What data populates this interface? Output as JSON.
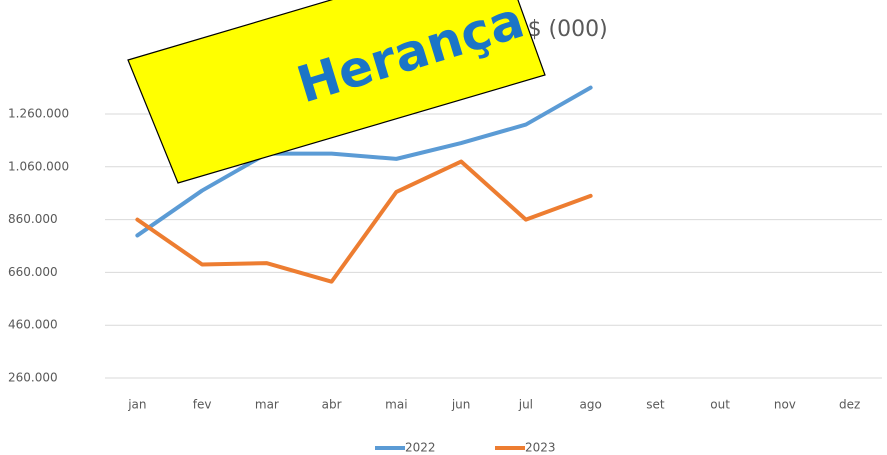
{
  "chart_data": {
    "type": "line",
    "title": "R$ (000)",
    "categories": [
      "jan",
      "fev",
      "mar",
      "abr",
      "mai",
      "jun",
      "jul",
      "ago",
      "set",
      "out",
      "nov",
      "dez"
    ],
    "series": [
      {
        "name": "2022",
        "color": "#5b9bd5",
        "values": [
          800000,
          970000,
          1110000,
          1110000,
          1090000,
          1150000,
          1220000,
          1360000,
          null,
          null,
          null,
          null
        ]
      },
      {
        "name": "2023",
        "color": "#ed7d31",
        "values": [
          860000,
          690000,
          695000,
          625000,
          965000,
          1080000,
          860000,
          950000,
          null,
          null,
          null,
          null
        ]
      }
    ],
    "ylim": [
      260000,
      1440000
    ],
    "yticks": [
      {
        "value": 260000,
        "label": "260.000"
      },
      {
        "value": 460000,
        "label": "460.000"
      },
      {
        "value": 660000,
        "label": "660.000"
      },
      {
        "value": 860000,
        "label": "860.000"
      },
      {
        "value": 1060000,
        "label": "1.060.000"
      },
      {
        "value": 1260000,
        "label": "1.260.000"
      }
    ],
    "grid": true,
    "legend": "bottom"
  },
  "overlay": {
    "text": "Herança"
  }
}
